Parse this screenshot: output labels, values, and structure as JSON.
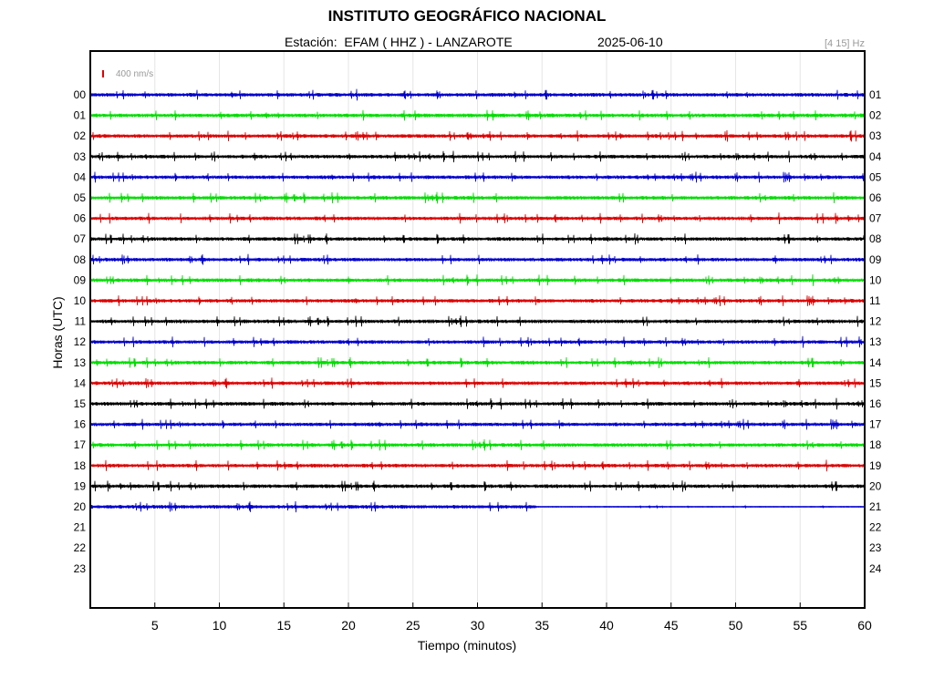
{
  "chart_data": {
    "type": "line",
    "title": "INSTITUTO GEOGRÁFICO NACIONAL",
    "subtitle_station": "Estación:  EFAM ( HHZ ) - LANZAROTE",
    "subtitle_date": "2025-06-10",
    "band_label": "[4 15] Hz",
    "scale_label": "400 nm/s",
    "scale_color": "#e00000",
    "xlabel": "Tiempo (minutos)",
    "ylabel": "Horas (UTC)",
    "xlim": [
      0,
      60
    ],
    "x_ticks": [
      5,
      10,
      15,
      20,
      25,
      30,
      35,
      40,
      45,
      50,
      55,
      60
    ],
    "left_hour_labels": [
      "00",
      "01",
      "02",
      "03",
      "04",
      "05",
      "06",
      "07",
      "08",
      "09",
      "10",
      "11",
      "12",
      "13",
      "14",
      "15",
      "16",
      "17",
      "18",
      "19",
      "20",
      "21",
      "22",
      "23"
    ],
    "right_hour_labels": [
      "01",
      "02",
      "03",
      "04",
      "05",
      "06",
      "07",
      "08",
      "09",
      "10",
      "11",
      "12",
      "13",
      "14",
      "15",
      "16",
      "17",
      "18",
      "19",
      "20",
      "21",
      "22",
      "23",
      "24"
    ],
    "color_cycle": [
      "#0000cc",
      "#00dd00",
      "#dd0000",
      "#000000"
    ],
    "grid": true,
    "series": [
      {
        "hour": 0,
        "end_minute": 60
      },
      {
        "hour": 1,
        "end_minute": 60
      },
      {
        "hour": 2,
        "end_minute": 60
      },
      {
        "hour": 3,
        "end_minute": 60
      },
      {
        "hour": 4,
        "end_minute": 60
      },
      {
        "hour": 5,
        "end_minute": 60
      },
      {
        "hour": 6,
        "end_minute": 60
      },
      {
        "hour": 7,
        "end_minute": 60
      },
      {
        "hour": 8,
        "end_minute": 60
      },
      {
        "hour": 9,
        "end_minute": 60
      },
      {
        "hour": 10,
        "end_minute": 60
      },
      {
        "hour": 11,
        "end_minute": 60
      },
      {
        "hour": 12,
        "end_minute": 60
      },
      {
        "hour": 13,
        "end_minute": 60
      },
      {
        "hour": 14,
        "end_minute": 60
      },
      {
        "hour": 15,
        "end_minute": 60
      },
      {
        "hour": 16,
        "end_minute": 60
      },
      {
        "hour": 17,
        "end_minute": 60
      },
      {
        "hour": 18,
        "end_minute": 60
      },
      {
        "hour": 19,
        "end_minute": 60
      },
      {
        "hour": 20,
        "end_minute": 60
      }
    ]
  }
}
